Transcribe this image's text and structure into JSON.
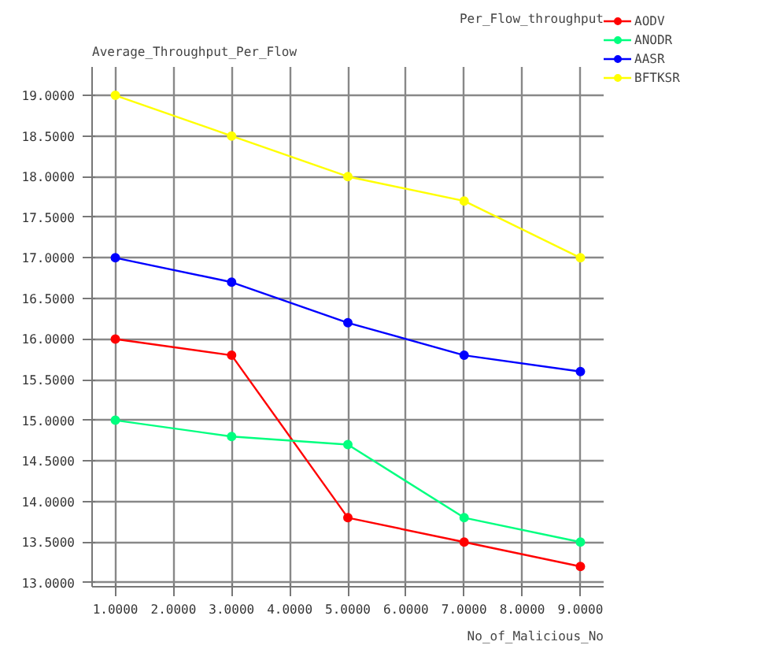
{
  "chart_data": {
    "type": "line",
    "title": "Per_Flow_throughput",
    "ylabel": "Average_Throughput_Per_Flow",
    "xlabel": "No_of_Malicious_No",
    "x": [
      1,
      3,
      5,
      7,
      9
    ],
    "series": [
      {
        "name": "AODV",
        "color": "#ff0000",
        "values": [
          16.0,
          15.8,
          13.8,
          13.5,
          13.2
        ]
      },
      {
        "name": "ANODR",
        "color": "#00ff7f",
        "values": [
          15.0,
          14.8,
          14.7,
          13.8,
          13.5
        ]
      },
      {
        "name": "AASR",
        "color": "#0000ff",
        "values": [
          17.0,
          16.7,
          16.2,
          15.8,
          15.6
        ]
      },
      {
        "name": "BFTKSR",
        "color": "#ffff00",
        "values": [
          19.0,
          18.5,
          18.0,
          17.7,
          17.0
        ]
      }
    ],
    "xlim": [
      0.6,
      9.4
    ],
    "ylim": [
      12.95,
      19.35
    ],
    "xticks": [
      {
        "value": 1,
        "label": "1.0000"
      },
      {
        "value": 2,
        "label": "2.0000"
      },
      {
        "value": 3,
        "label": "3.0000"
      },
      {
        "value": 4,
        "label": "4.0000"
      },
      {
        "value": 5,
        "label": "5.0000"
      },
      {
        "value": 6,
        "label": "6.0000"
      },
      {
        "value": 7,
        "label": "7.0000"
      },
      {
        "value": 8,
        "label": "8.0000"
      },
      {
        "value": 9,
        "label": "9.0000"
      }
    ],
    "yticks": [
      {
        "value": 13,
        "label": "13.0000"
      },
      {
        "value": 13.5,
        "label": "13.5000"
      },
      {
        "value": 14,
        "label": "14.0000"
      },
      {
        "value": 14.5,
        "label": "14.5000"
      },
      {
        "value": 15,
        "label": "15.0000"
      },
      {
        "value": 15.5,
        "label": "15.5000"
      },
      {
        "value": 16,
        "label": "16.0000"
      },
      {
        "value": 16.5,
        "label": "16.5000"
      },
      {
        "value": 17,
        "label": "17.0000"
      },
      {
        "value": 17.5,
        "label": "17.5000"
      },
      {
        "value": 18,
        "label": "18.0000"
      },
      {
        "value": 18.5,
        "label": "18.5000"
      },
      {
        "value": 19,
        "label": "19.0000"
      }
    ],
    "grid": true,
    "legend": "top right",
    "marker": "circle",
    "line_style": "solid"
  }
}
